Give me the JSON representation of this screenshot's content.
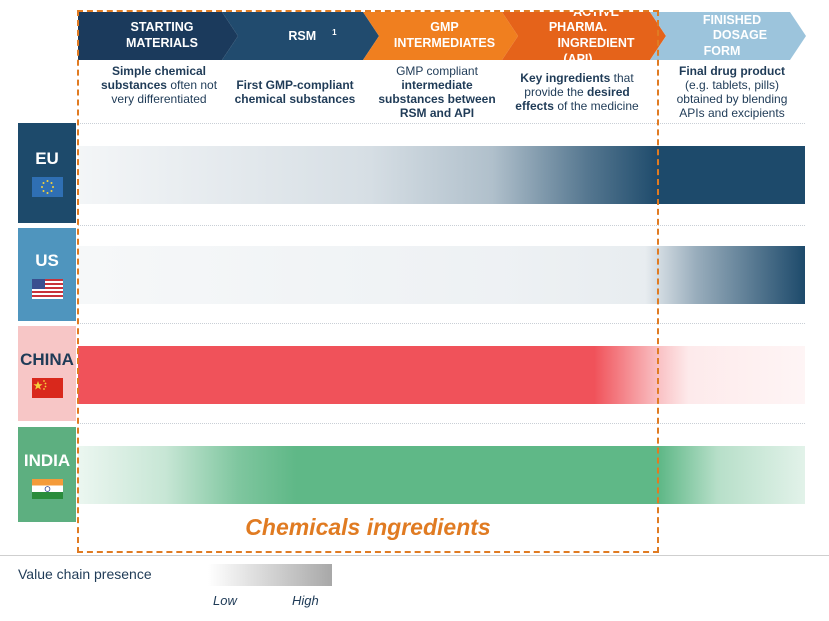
{
  "header": {
    "stages": [
      {
        "label_line1": "STARTING",
        "label_line2": "MATERIALS",
        "color": "#1b3a5c"
      },
      {
        "label": "RSM",
        "sup": "1",
        "color": "#214b6e"
      },
      {
        "label_line1": "GMP",
        "label_line2": "INTERMEDIATES",
        "color": "#f07f1f"
      },
      {
        "label_line1": "ACTIVE PHARMA.",
        "label_line2": "INGREDIENT (API)",
        "color": "#e5631a"
      },
      {
        "label_line1": "FINISHED",
        "label_line2": "DOSAGE FORM",
        "color": "#9cc4dc"
      }
    ]
  },
  "descriptions": {
    "starting": {
      "b1": "Simple chemical",
      "b2": "substances",
      "t2": " often not",
      "t3": "very differentiated"
    },
    "rsm": {
      "b1": "First GMP-compliant",
      "b2": "chemical substances"
    },
    "gmp": {
      "t1": "GMP compliant",
      "b2": "intermediate",
      "b3": "substances between",
      "b4": "RSM and API"
    },
    "api": {
      "b1": "Key ingredients",
      "t1": " that",
      "t2": "provide the ",
      "b2": "desired",
      "b3": "effects",
      "t3": " of the medicine"
    },
    "fdf": {
      "b1": "Final drug product",
      "t2": "(e.g. tablets, pills)",
      "t3": "obtained by blending",
      "t4": "APIs and excipients"
    }
  },
  "countries": [
    {
      "name": "EU",
      "bg": "#1d4a6b",
      "text_color": "#ffffff",
      "bar_color": "#1d4a6b"
    },
    {
      "name": "US",
      "bg": "#4f95be",
      "text_color": "#ffffff",
      "bar_color": "#1d4a6b"
    },
    {
      "name": "CHINA",
      "bg": "#f7c6c6",
      "text_color": "#1f3b57",
      "bar_color": "#f0525a"
    },
    {
      "name": "INDIA",
      "bg": "#5daf80",
      "text_color": "#ffffff",
      "bar_color": "#5fb887"
    }
  ],
  "chemicals_label": "Chemicals ingredients",
  "legend": {
    "label": "Value chain presence",
    "low": "Low",
    "high": "High"
  }
}
